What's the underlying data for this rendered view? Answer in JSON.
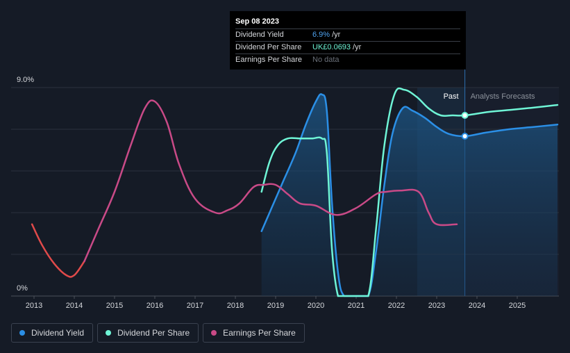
{
  "chart_data": {
    "type": "line",
    "title": "",
    "xlabel": "",
    "ylabel": "",
    "ylim": [
      0,
      9.0
    ],
    "y_tick_labels": [
      "9.0%",
      "0%"
    ],
    "x_tick_labels": [
      "2013",
      "2014",
      "2015",
      "2016",
      "2017",
      "2018",
      "2019",
      "2020",
      "2021",
      "2022",
      "2023",
      "2024",
      "2025"
    ],
    "x_range": [
      2012.5,
      2026.0
    ],
    "past_label": "Past",
    "forecast_label": "Analysts Forecasts",
    "forecast_start": 2023.7,
    "forecast_shade_start": 2023.0,
    "series": [
      {
        "name": "Dividend Yield",
        "color": "#2b8fe6",
        "x": [
          2018.65,
          2018.9,
          2019.2,
          2019.5,
          2019.75,
          2020.0,
          2020.15,
          2020.27,
          2020.4,
          2020.55,
          2020.7,
          2021.0,
          2021.3,
          2021.5,
          2021.7,
          2021.9,
          2022.15,
          2022.4,
          2022.7,
          2023.0,
          2023.3,
          2023.7,
          2024.2,
          2024.8,
          2025.4,
          2026.0
        ],
        "values": [
          2.8,
          3.8,
          5.0,
          6.2,
          7.4,
          8.4,
          8.7,
          8.0,
          4.0,
          1.0,
          0.0,
          0.0,
          0.0,
          2.0,
          4.8,
          7.0,
          8.1,
          8.0,
          7.7,
          7.3,
          7.0,
          6.9,
          7.05,
          7.2,
          7.3,
          7.4
        ]
      },
      {
        "name": "Dividend Per Share",
        "color": "#6ff5d6",
        "x": [
          2018.65,
          2018.85,
          2019.05,
          2019.3,
          2019.6,
          2019.9,
          2020.15,
          2020.27,
          2020.4,
          2020.55,
          2020.7,
          2021.0,
          2021.3,
          2021.5,
          2021.7,
          2021.95,
          2022.2,
          2022.5,
          2022.8,
          2023.1,
          2023.4,
          2023.7,
          2024.3,
          2024.9,
          2025.5,
          2026.0
        ],
        "values": [
          4.5,
          5.8,
          6.5,
          6.8,
          6.8,
          6.8,
          6.8,
          6.2,
          2.0,
          0.0,
          0.0,
          0.0,
          0.0,
          3.0,
          6.5,
          8.7,
          8.9,
          8.6,
          8.1,
          7.8,
          7.8,
          7.8,
          7.95,
          8.05,
          8.15,
          8.25
        ]
      },
      {
        "name": "Earnings Per Share",
        "color": "#c94a87",
        "x": [
          2012.95,
          2013.2,
          2013.5,
          2013.8,
          2014.0,
          2014.25,
          2014.6,
          2015.0,
          2015.4,
          2015.75,
          2016.0,
          2016.3,
          2016.6,
          2017.0,
          2017.5,
          2017.8,
          2018.1,
          2018.45,
          2018.7,
          2019.0,
          2019.3,
          2019.6,
          2020.0,
          2020.5,
          2021.0,
          2021.5,
          2021.75,
          2022.1,
          2022.55,
          2022.8,
          2023.0,
          2023.5
        ],
        "values": [
          3.1,
          2.2,
          1.4,
          0.9,
          0.9,
          1.5,
          2.9,
          4.5,
          6.5,
          8.1,
          8.4,
          7.5,
          5.7,
          4.2,
          3.6,
          3.7,
          4.0,
          4.7,
          4.8,
          4.8,
          4.4,
          4.0,
          3.9,
          3.5,
          3.8,
          4.4,
          4.5,
          4.55,
          4.5,
          3.6,
          3.1,
          3.1
        ],
        "color_segments": [
          {
            "until_x": 2014.25,
            "color": "#e04a4a"
          }
        ]
      }
    ],
    "markers": [
      {
        "series": "Dividend Yield",
        "x": 2023.7,
        "value": 6.9
      },
      {
        "series": "Dividend Per Share",
        "x": 2023.7,
        "value": 7.8
      }
    ]
  },
  "tooltip": {
    "date": "Sep 08 2023",
    "rows": [
      {
        "label": "Dividend Yield",
        "value": "6.9%",
        "unit": "/yr"
      },
      {
        "label": "Dividend Per Share",
        "value": "UK£0.0693",
        "unit": "/yr"
      },
      {
        "label": "Earnings Per Share",
        "value": "No data"
      }
    ]
  },
  "legend": [
    {
      "label": "Dividend Yield",
      "color": "#2b8fe6"
    },
    {
      "label": "Dividend Per Share",
      "color": "#6ff5d6"
    },
    {
      "label": "Earnings Per Share",
      "color": "#c94a87"
    }
  ]
}
